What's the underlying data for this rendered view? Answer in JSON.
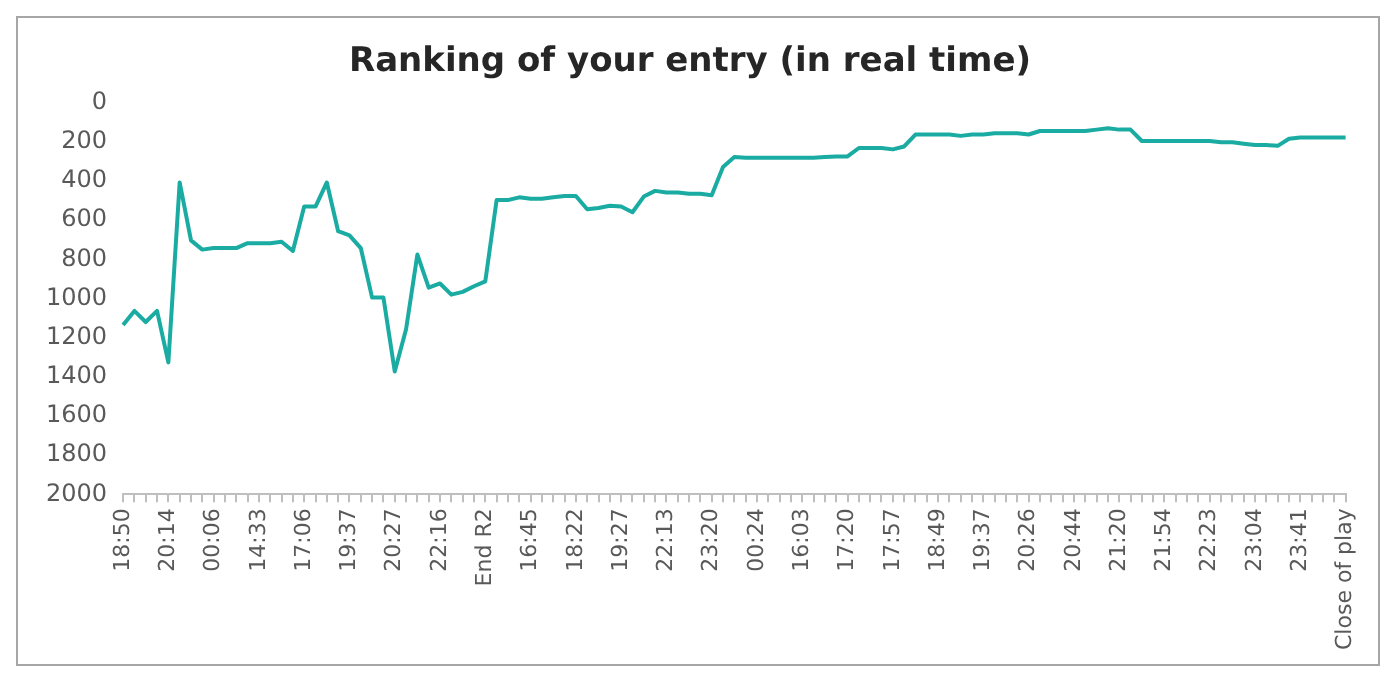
{
  "chart_data": {
    "type": "line",
    "title": "Ranking of your entry (in real time)",
    "categories": [
      "18:50",
      null,
      null,
      null,
      "20:14",
      null,
      null,
      null,
      "00:06",
      null,
      null,
      null,
      "14:33",
      null,
      null,
      null,
      "17:06",
      null,
      null,
      null,
      "19:37",
      null,
      null,
      null,
      "20:27",
      null,
      null,
      null,
      "22:16",
      null,
      null,
      null,
      "End R2",
      null,
      null,
      null,
      "16:45",
      null,
      null,
      null,
      "18:22",
      null,
      null,
      null,
      "19:27",
      null,
      null,
      null,
      "22:13",
      null,
      null,
      null,
      "23:20",
      null,
      null,
      null,
      "00:24",
      null,
      null,
      null,
      "16:03",
      null,
      null,
      null,
      "17:20",
      null,
      null,
      null,
      "17:57",
      null,
      null,
      null,
      "18:49",
      null,
      null,
      null,
      "19:37",
      null,
      null,
      null,
      "20:26",
      null,
      null,
      null,
      "20:44",
      null,
      null,
      null,
      "21:20",
      null,
      null,
      null,
      "21:54",
      null,
      null,
      null,
      "22:23",
      null,
      null,
      null,
      "23:04",
      null,
      null,
      null,
      "23:41",
      null,
      null,
      null,
      "Close of play"
    ],
    "series": [
      {
        "color": "#1aaba3",
        "values": [
          1135,
          1063,
          1120,
          1063,
          1326,
          407,
          703,
          750,
          742,
          742,
          742,
          717,
          717,
          717,
          710,
          757,
          530,
          530,
          407,
          656,
          677,
          742,
          995,
          995,
          1373,
          1157,
          775,
          944,
          923,
          980,
          966,
          937,
          912,
          497,
          497,
          483,
          490,
          490,
          483,
          476,
          476,
          544,
          537,
          526,
          530,
          559,
          479,
          450,
          458,
          458,
          465,
          465,
          472,
          328,
          277,
          281,
          281,
          281,
          281,
          281,
          281,
          281,
          277,
          274,
          274,
          231,
          231,
          231,
          238,
          223,
          162,
          162,
          162,
          162,
          169,
          162,
          162,
          155,
          155,
          155,
          162,
          144,
          144,
          144,
          144,
          144,
          137,
          130,
          137,
          137,
          195,
          195,
          195,
          195,
          195,
          195,
          195,
          202,
          202,
          209,
          216,
          216,
          220,
          184,
          177,
          177,
          177,
          177,
          177
        ]
      }
    ],
    "ylim": [
      2000,
      0
    ],
    "yticks": [
      0,
      200,
      400,
      600,
      800,
      1000,
      1200,
      1400,
      1600,
      1800,
      2000
    ],
    "grid": false,
    "legend": false,
    "marker": "none",
    "line_style": "solid"
  }
}
